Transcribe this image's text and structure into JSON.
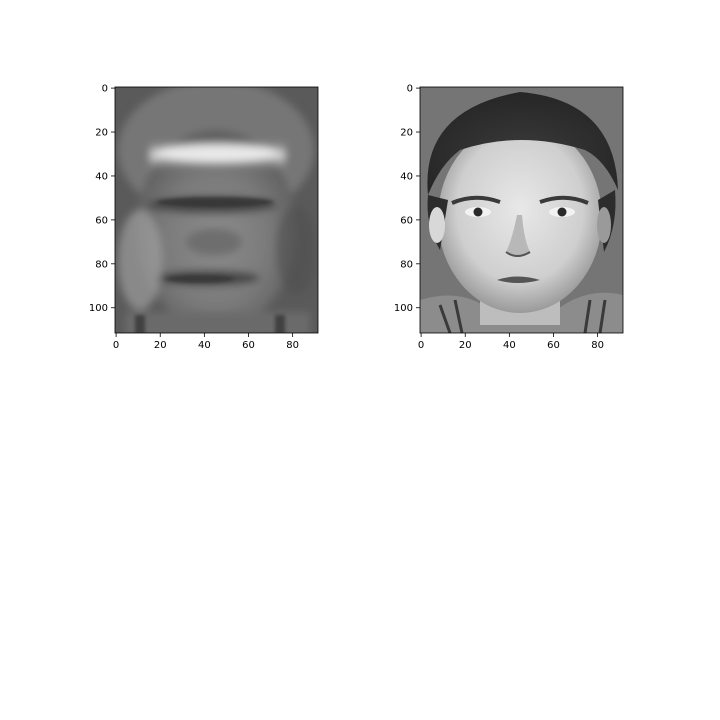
{
  "chart_data": [
    {
      "type": "heatmap",
      "title": "",
      "xlabel": "",
      "ylabel": "",
      "colormap": "gray",
      "image_shape": [
        112,
        92
      ],
      "content": "reconstructed face (blurred)",
      "xlim": [
        -0.5,
        91.5
      ],
      "ylim": [
        111.5,
        -0.5
      ],
      "xticks": [
        0,
        20,
        40,
        60,
        80
      ],
      "yticks": [
        0,
        20,
        40,
        60,
        80,
        100
      ],
      "xtick_labels": [
        "0",
        "20",
        "40",
        "60",
        "80"
      ],
      "ytick_labels": [
        "0",
        "20",
        "40",
        "60",
        "80",
        "100"
      ],
      "grid": false
    },
    {
      "type": "heatmap",
      "title": "",
      "xlabel": "",
      "ylabel": "",
      "colormap": "gray",
      "image_shape": [
        112,
        92
      ],
      "content": "original face",
      "xlim": [
        -0.5,
        91.5
      ],
      "ylim": [
        111.5,
        -0.5
      ],
      "xticks": [
        0,
        20,
        40,
        60,
        80
      ],
      "yticks": [
        0,
        20,
        40,
        60,
        80,
        100
      ],
      "xtick_labels": [
        "0",
        "20",
        "40",
        "60",
        "80"
      ],
      "ytick_labels": [
        "0",
        "20",
        "40",
        "60",
        "80",
        "100"
      ],
      "grid": false
    }
  ]
}
